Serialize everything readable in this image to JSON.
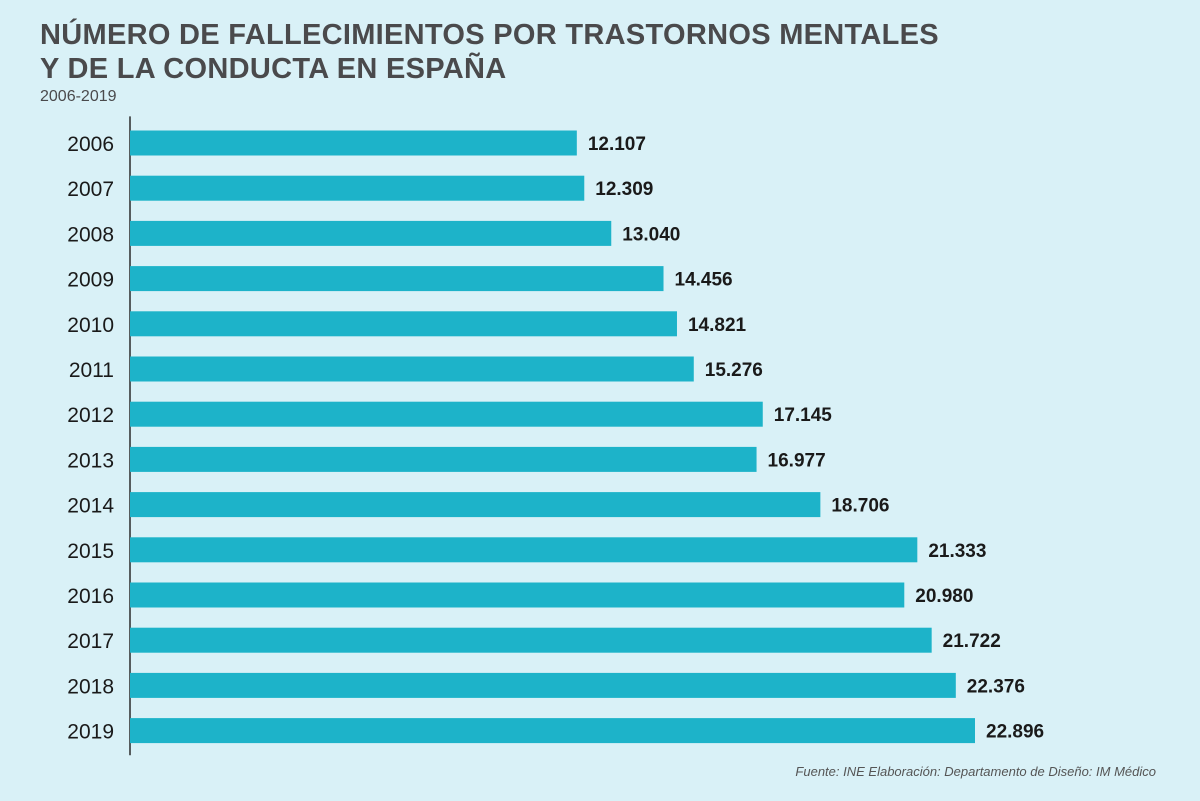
{
  "header": {
    "title_line1": "NÚMERO DE FALLECIMIENTOS POR TRASTORNOS MENTALES",
    "title_line2": "Y DE LA CONDUCTA EN ESPAÑA",
    "subtitle": "2006-2019"
  },
  "footer": {
    "source": "Fuente: INE  Elaboración: Departamento de Diseño: IM Médico"
  },
  "colors": {
    "bar": "#1db3c9",
    "background": "#d9f1f7",
    "text": "#1a1a1a",
    "axis": "#2b2b2b"
  },
  "chart_data": {
    "type": "bar",
    "orientation": "horizontal",
    "title": "NÚMERO DE FALLECIMIENTOS POR TRASTORNOS MENTALES Y DE LA CONDUCTA EN ESPAÑA",
    "subtitle": "2006-2019",
    "categories": [
      "2006",
      "2007",
      "2008",
      "2009",
      "2010",
      "2011",
      "2012",
      "2013",
      "2014",
      "2015",
      "2016",
      "2017",
      "2018",
      "2019"
    ],
    "values": [
      12107,
      12309,
      13040,
      14456,
      14821,
      15276,
      17145,
      16977,
      18706,
      21333,
      20980,
      21722,
      22376,
      22896
    ],
    "value_labels": [
      "12.107",
      "12.309",
      "13.040",
      "14.456",
      "14.821",
      "15.276",
      "17.145",
      "16.977",
      "18.706",
      "21.333",
      "20.980",
      "21.722",
      "22.376",
      "22.896"
    ],
    "xlim": [
      0,
      22896
    ],
    "grid": false,
    "legend": "none"
  }
}
